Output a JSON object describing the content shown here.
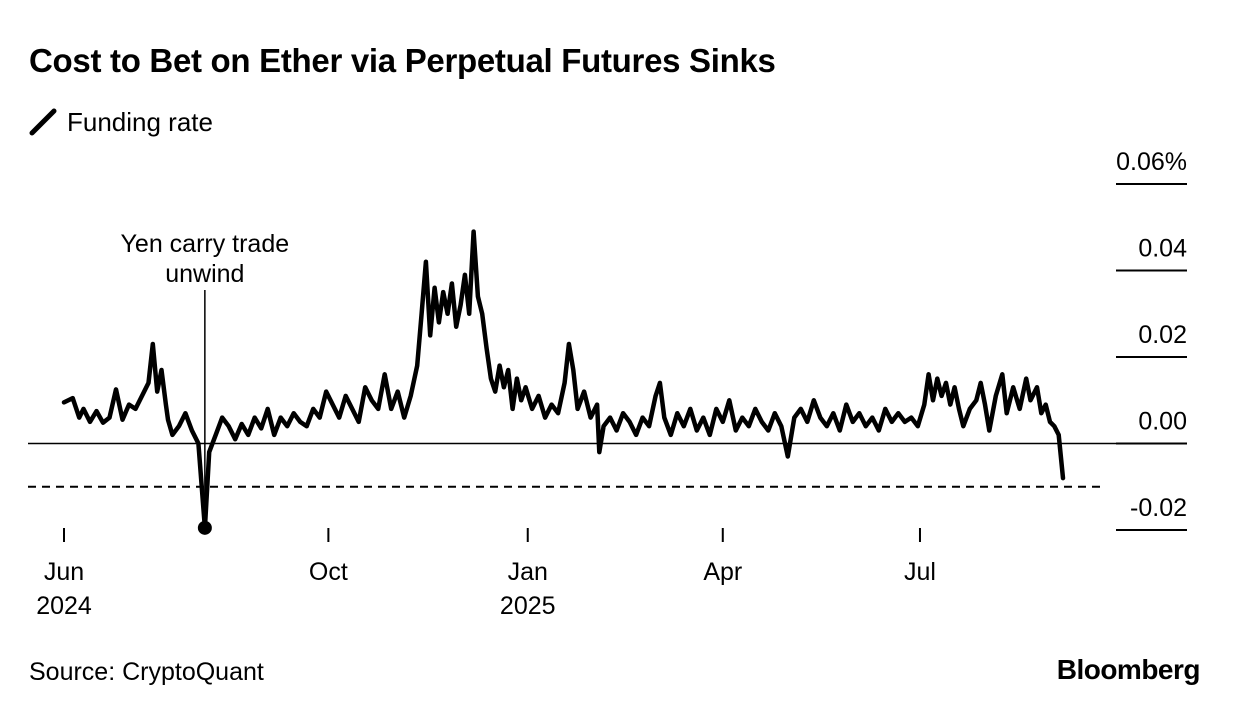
{
  "title": "Cost to Bet on Ether via Perpetual Futures Sinks",
  "legend": {
    "label": "Funding rate",
    "icon": "line-swatch-icon"
  },
  "source": "Source: CryptoQuant",
  "brand": "Bloomberg",
  "colors": {
    "line": "#000000",
    "zero_line": "#000000",
    "threshold": "#000000"
  },
  "chart_data": {
    "type": "line",
    "title": "Cost to Bet on Ether via Perpetual Futures Sinks",
    "xlabel": "",
    "ylabel": "",
    "ylim": [
      -0.02,
      0.06
    ],
    "grid": false,
    "legend_position": "top-left",
    "y_ticks": [
      {
        "value": 0.06,
        "label": "0.06%"
      },
      {
        "value": 0.04,
        "label": "0.04"
      },
      {
        "value": 0.02,
        "label": "0.02"
      },
      {
        "value": 0.0,
        "label": "0.00"
      },
      {
        "value": -0.02,
        "label": "-0.02"
      }
    ],
    "x_ticks": [
      {
        "date": "2024-06-01",
        "label": "Jun",
        "sublabel": "2024"
      },
      {
        "date": "2024-10-01",
        "label": "Oct",
        "sublabel": ""
      },
      {
        "date": "2025-01-01",
        "label": "Jan",
        "sublabel": "2025"
      },
      {
        "date": "2025-04-01",
        "label": "Apr",
        "sublabel": ""
      },
      {
        "date": "2025-07-01",
        "label": "Jul",
        "sublabel": ""
      }
    ],
    "annotations": [
      {
        "text": [
          "Yen carry trade",
          "unwind"
        ],
        "date": "2024-08-05",
        "value": -0.0195
      }
    ],
    "reference_line": {
      "value": -0.01,
      "style": "dashed"
    },
    "series": [
      {
        "points": [
          [
            "2024-06-01",
            0.0095
          ],
          [
            "2024-06-05",
            0.0105
          ],
          [
            "2024-06-08",
            0.006
          ],
          [
            "2024-06-10",
            0.008
          ],
          [
            "2024-06-13",
            0.005
          ],
          [
            "2024-06-16",
            0.0075
          ],
          [
            "2024-06-19",
            0.0048
          ],
          [
            "2024-06-22",
            0.006
          ],
          [
            "2024-06-25",
            0.0125
          ],
          [
            "2024-06-28",
            0.0055
          ],
          [
            "2024-07-01",
            0.009
          ],
          [
            "2024-07-04",
            0.008
          ],
          [
            "2024-07-07",
            0.011
          ],
          [
            "2024-07-10",
            0.014
          ],
          [
            "2024-07-12",
            0.023
          ],
          [
            "2024-07-14",
            0.012
          ],
          [
            "2024-07-16",
            0.017
          ],
          [
            "2024-07-18",
            0.009
          ],
          [
            "2024-07-19",
            0.0055
          ],
          [
            "2024-07-21",
            0.002
          ],
          [
            "2024-07-24",
            0.004
          ],
          [
            "2024-07-27",
            0.007
          ],
          [
            "2024-07-30",
            0.003
          ],
          [
            "2024-08-02",
            0.0
          ],
          [
            "2024-08-05",
            -0.0195
          ],
          [
            "2024-08-07",
            -0.002
          ],
          [
            "2024-08-10",
            0.002
          ],
          [
            "2024-08-13",
            0.006
          ],
          [
            "2024-08-16",
            0.004
          ],
          [
            "2024-08-19",
            0.001
          ],
          [
            "2024-08-22",
            0.0045
          ],
          [
            "2024-08-25",
            0.002
          ],
          [
            "2024-08-28",
            0.006
          ],
          [
            "2024-08-31",
            0.0035
          ],
          [
            "2024-09-03",
            0.008
          ],
          [
            "2024-09-06",
            0.002
          ],
          [
            "2024-09-09",
            0.006
          ],
          [
            "2024-09-12",
            0.004
          ],
          [
            "2024-09-15",
            0.007
          ],
          [
            "2024-09-18",
            0.005
          ],
          [
            "2024-09-21",
            0.004
          ],
          [
            "2024-09-24",
            0.008
          ],
          [
            "2024-09-27",
            0.006
          ],
          [
            "2024-09-30",
            0.012
          ],
          [
            "2024-10-03",
            0.009
          ],
          [
            "2024-10-06",
            0.006
          ],
          [
            "2024-10-09",
            0.011
          ],
          [
            "2024-10-12",
            0.008
          ],
          [
            "2024-10-15",
            0.005
          ],
          [
            "2024-10-18",
            0.013
          ],
          [
            "2024-10-21",
            0.01
          ],
          [
            "2024-10-24",
            0.008
          ],
          [
            "2024-10-27",
            0.016
          ],
          [
            "2024-10-30",
            0.008
          ],
          [
            "2024-11-02",
            0.012
          ],
          [
            "2024-11-05",
            0.006
          ],
          [
            "2024-11-08",
            0.011
          ],
          [
            "2024-11-11",
            0.018
          ],
          [
            "2024-11-13",
            0.03
          ],
          [
            "2024-11-15",
            0.042
          ],
          [
            "2024-11-17",
            0.025
          ],
          [
            "2024-11-19",
            0.036
          ],
          [
            "2024-11-21",
            0.028
          ],
          [
            "2024-11-23",
            0.035
          ],
          [
            "2024-11-25",
            0.03
          ],
          [
            "2024-11-27",
            0.037
          ],
          [
            "2024-11-29",
            0.027
          ],
          [
            "2024-12-01",
            0.032
          ],
          [
            "2024-12-03",
            0.039
          ],
          [
            "2024-12-05",
            0.03
          ],
          [
            "2024-12-07",
            0.049
          ],
          [
            "2024-12-09",
            0.034
          ],
          [
            "2024-12-11",
            0.03
          ],
          [
            "2024-12-13",
            0.022
          ],
          [
            "2024-12-15",
            0.015
          ],
          [
            "2024-12-17",
            0.012
          ],
          [
            "2024-12-19",
            0.018
          ],
          [
            "2024-12-21",
            0.013
          ],
          [
            "2024-12-23",
            0.017
          ],
          [
            "2024-12-25",
            0.008
          ],
          [
            "2024-12-27",
            0.015
          ],
          [
            "2024-12-29",
            0.01
          ],
          [
            "2024-12-31",
            0.013
          ],
          [
            "2025-01-03",
            0.008
          ],
          [
            "2025-01-06",
            0.011
          ],
          [
            "2025-01-09",
            0.006
          ],
          [
            "2025-01-12",
            0.009
          ],
          [
            "2025-01-15",
            0.007
          ],
          [
            "2025-01-18",
            0.014
          ],
          [
            "2025-01-20",
            0.023
          ],
          [
            "2025-01-22",
            0.017
          ],
          [
            "2025-01-24",
            0.008
          ],
          [
            "2025-01-27",
            0.012
          ],
          [
            "2025-01-30",
            0.006
          ],
          [
            "2025-02-02",
            0.009
          ],
          [
            "2025-02-03",
            -0.002
          ],
          [
            "2025-02-05",
            0.004
          ],
          [
            "2025-02-08",
            0.006
          ],
          [
            "2025-02-11",
            0.003
          ],
          [
            "2025-02-14",
            0.007
          ],
          [
            "2025-02-17",
            0.005
          ],
          [
            "2025-02-20",
            0.002
          ],
          [
            "2025-02-23",
            0.006
          ],
          [
            "2025-02-26",
            0.004
          ],
          [
            "2025-03-01",
            0.011
          ],
          [
            "2025-03-03",
            0.014
          ],
          [
            "2025-03-05",
            0.006
          ],
          [
            "2025-03-08",
            0.002
          ],
          [
            "2025-03-11",
            0.007
          ],
          [
            "2025-03-14",
            0.004
          ],
          [
            "2025-03-17",
            0.008
          ],
          [
            "2025-03-20",
            0.003
          ],
          [
            "2025-03-23",
            0.006
          ],
          [
            "2025-03-26",
            0.002
          ],
          [
            "2025-03-29",
            0.008
          ],
          [
            "2025-04-01",
            0.005
          ],
          [
            "2025-04-04",
            0.01
          ],
          [
            "2025-04-07",
            0.003
          ],
          [
            "2025-04-10",
            0.006
          ],
          [
            "2025-04-13",
            0.004
          ],
          [
            "2025-04-16",
            0.008
          ],
          [
            "2025-04-19",
            0.005
          ],
          [
            "2025-04-22",
            0.003
          ],
          [
            "2025-04-25",
            0.007
          ],
          [
            "2025-04-28",
            0.004
          ],
          [
            "2025-05-01",
            -0.003
          ],
          [
            "2025-05-04",
            0.006
          ],
          [
            "2025-05-07",
            0.008
          ],
          [
            "2025-05-10",
            0.005
          ],
          [
            "2025-05-13",
            0.01
          ],
          [
            "2025-05-16",
            0.006
          ],
          [
            "2025-05-19",
            0.004
          ],
          [
            "2025-05-22",
            0.007
          ],
          [
            "2025-05-25",
            0.003
          ],
          [
            "2025-05-28",
            0.009
          ],
          [
            "2025-05-31",
            0.005
          ],
          [
            "2025-06-03",
            0.007
          ],
          [
            "2025-06-06",
            0.004
          ],
          [
            "2025-06-09",
            0.006
          ],
          [
            "2025-06-12",
            0.003
          ],
          [
            "2025-06-15",
            0.008
          ],
          [
            "2025-06-18",
            0.005
          ],
          [
            "2025-06-21",
            0.007
          ],
          [
            "2025-06-24",
            0.005
          ],
          [
            "2025-06-27",
            0.006
          ],
          [
            "2025-06-30",
            0.004
          ],
          [
            "2025-07-03",
            0.009
          ],
          [
            "2025-07-05",
            0.016
          ],
          [
            "2025-07-07",
            0.01
          ],
          [
            "2025-07-09",
            0.015
          ],
          [
            "2025-07-11",
            0.011
          ],
          [
            "2025-07-13",
            0.014
          ],
          [
            "2025-07-15",
            0.009
          ],
          [
            "2025-07-17",
            0.013
          ],
          [
            "2025-07-19",
            0.008
          ],
          [
            "2025-07-21",
            0.004
          ],
          [
            "2025-07-24",
            0.008
          ],
          [
            "2025-07-27",
            0.01
          ],
          [
            "2025-07-29",
            0.014
          ],
          [
            "2025-07-31",
            0.009
          ],
          [
            "2025-08-02",
            0.003
          ],
          [
            "2025-08-05",
            0.011
          ],
          [
            "2025-08-08",
            0.016
          ],
          [
            "2025-08-10",
            0.007
          ],
          [
            "2025-08-13",
            0.013
          ],
          [
            "2025-08-16",
            0.008
          ],
          [
            "2025-08-19",
            0.015
          ],
          [
            "2025-08-21",
            0.01
          ],
          [
            "2025-08-24",
            0.013
          ],
          [
            "2025-08-26",
            0.007
          ],
          [
            "2025-08-28",
            0.009
          ],
          [
            "2025-08-30",
            0.005
          ],
          [
            "2025-09-01",
            0.004
          ],
          [
            "2025-09-03",
            0.002
          ],
          [
            "2025-09-05",
            -0.008
          ]
        ]
      }
    ]
  }
}
